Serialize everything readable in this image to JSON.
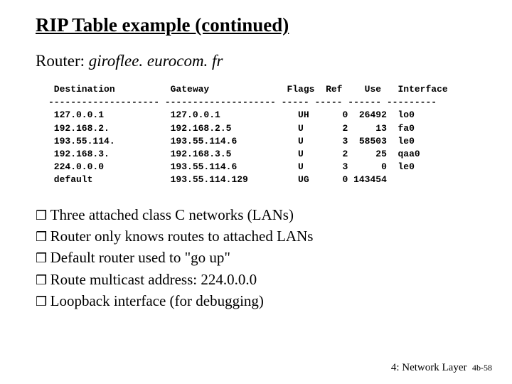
{
  "title": "RIP Table example (continued)",
  "subtitle_prefix": "Router: ",
  "subtitle_host": "giroflee. eurocom. fr",
  "table": {
    "header": " Destination          Gateway              Flags  Ref    Use   Interface",
    "divider": "-------------------- -------------------- ----- ----- ------ ---------",
    "rows": [
      " 127.0.0.1            127.0.0.1              UH      0  26492  lo0",
      " 192.168.2.           192.168.2.5            U       2     13  fa0",
      " 193.55.114.          193.55.114.6           U       3  58503  le0",
      " 192.168.3.           192.168.3.5            U       2     25  qaa0",
      " 224.0.0.0            193.55.114.6           U       3      0  le0",
      " default              193.55.114.129         UG      0 143454"
    ]
  },
  "bullets": [
    "Three attached class C networks (LANs)",
    "Router only knows routes to attached LANs",
    "Default router used to \"go up\"",
    "Route multicast address: 224.0.0.0",
    "Loopback interface (for debugging)"
  ],
  "footer_text": "4: Network Layer",
  "footer_page": "4b-58",
  "colors": {
    "background": "#ffffff",
    "text": "#000000"
  }
}
